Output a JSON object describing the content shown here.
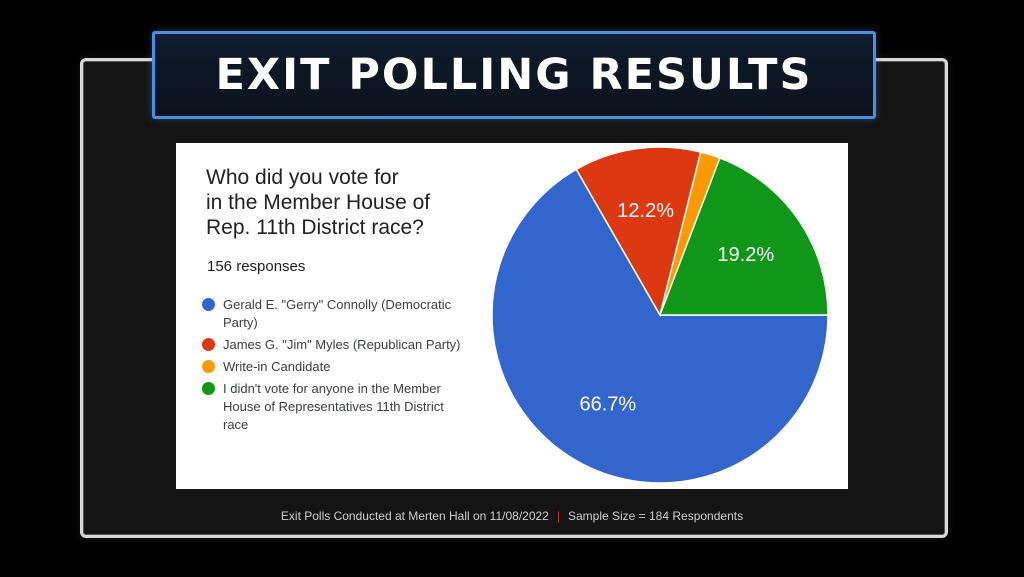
{
  "banner": {
    "title": "EXIT POLLING RESULTS"
  },
  "chart_data": {
    "type": "pie",
    "title": "Who did you vote for in the Member House of Rep. 11th District race?",
    "title_lines": [
      "Who did you vote for",
      "in the Member House of",
      "Rep. 11th District race?"
    ],
    "subtitle": "156 responses",
    "legend_position": "left",
    "slices": [
      {
        "label": "Gerald E. \"Gerry\" Connolly (Democratic Party)",
        "legend_lines": [
          "Gerald E. \"Gerry\" Connolly (Democratic",
          "Party)"
        ],
        "value": 66.7,
        "display": "66.7%",
        "color": "#3366cc"
      },
      {
        "label": "James G. \"Jim\" Myles (Republican Party)",
        "legend_lines": [
          "James G. \"Jim\" Myles (Republican Party)"
        ],
        "value": 12.2,
        "display": "12.2%",
        "color": "#dc3912"
      },
      {
        "label": "Write-in Candidate",
        "legend_lines": [
          "Write-in Candidate"
        ],
        "value": 1.9,
        "display": "",
        "color": "#ff9900"
      },
      {
        "label": "I didn't vote for anyone in the Member House of Representatives 11th District race",
        "legend_lines": [
          "I didn't vote for anyone in the Member",
          "House of Representatives 11th District",
          "race"
        ],
        "value": 19.2,
        "display": "19.2%",
        "color": "#109618"
      }
    ]
  },
  "footer": {
    "left": "Exit Polls Conducted at Merten Hall on 11/08/2022",
    "separator": "|",
    "right": "Sample Size = 184 Respondents"
  }
}
